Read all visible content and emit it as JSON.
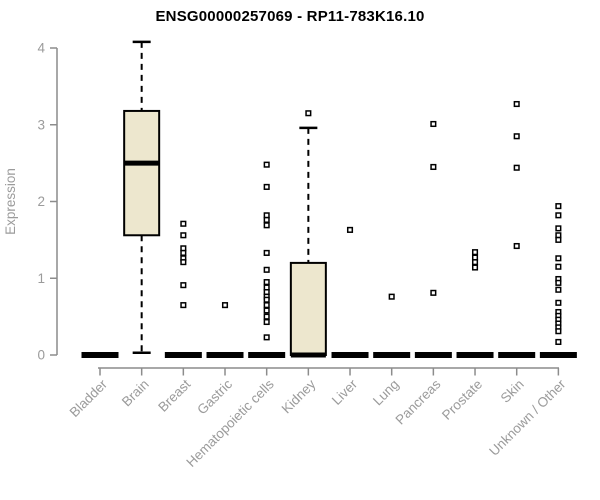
{
  "chart_data": {
    "type": "boxplot",
    "title": "ENSG00000257069 - RP11-783K16.10",
    "ylabel": "Expression",
    "xlabel": "",
    "ylim": [
      0,
      4
    ],
    "yticks": [
      0,
      1,
      2,
      3,
      4
    ],
    "grid": "off",
    "legend": "none",
    "categories": [
      "Bladder",
      "Brain",
      "Breast",
      "Gastric",
      "Hematopoietic cells",
      "Kidney",
      "Liver",
      "Lung",
      "Pancreas",
      "Prostate",
      "Skin",
      "Unknown / Other"
    ],
    "boxes": [
      {
        "category": "Bladder",
        "low": 0,
        "q1": 0,
        "median": 0,
        "q3": 0,
        "high": 0,
        "outliers": []
      },
      {
        "category": "Brain",
        "low": 0.03,
        "q1": 1.56,
        "median": 2.5,
        "q3": 3.18,
        "high": 4.08,
        "outliers": []
      },
      {
        "category": "Breast",
        "low": 0,
        "q1": 0,
        "median": 0,
        "q3": 0,
        "high": 0,
        "outliers": [
          1.71,
          1.56,
          1.39,
          1.33,
          1.26,
          1.21,
          0.91,
          0.65
        ]
      },
      {
        "category": "Gastric",
        "low": 0,
        "q1": 0,
        "median": 0,
        "q3": 0,
        "high": 0,
        "outliers": [
          0.65
        ]
      },
      {
        "category": "Hematopoietic cells",
        "low": 0,
        "q1": 0,
        "median": 0,
        "q3": 0,
        "high": 0,
        "outliers": [
          2.48,
          2.19,
          1.82,
          1.76,
          1.69,
          1.33,
          1.11,
          0.95,
          0.88,
          0.82,
          0.76,
          0.72,
          0.65,
          0.58,
          0.5,
          0.43,
          0.23
        ]
      },
      {
        "category": "Kidney",
        "low": 0,
        "q1": 0,
        "median": 0,
        "q3": 1.2,
        "high": 2.96,
        "outliers": [
          3.15
        ]
      },
      {
        "category": "Liver",
        "low": 0,
        "q1": 0,
        "median": 0,
        "q3": 0,
        "high": 0,
        "outliers": [
          1.63
        ]
      },
      {
        "category": "Lung",
        "low": 0,
        "q1": 0,
        "median": 0,
        "q3": 0,
        "high": 0,
        "outliers": [
          0.76
        ]
      },
      {
        "category": "Pancreas",
        "low": 0,
        "q1": 0,
        "median": 0,
        "q3": 0,
        "high": 0,
        "outliers": [
          3.01,
          2.45,
          0.81
        ]
      },
      {
        "category": "Prostate",
        "low": 0,
        "q1": 0,
        "median": 0,
        "q3": 0,
        "high": 0,
        "outliers": [
          1.34,
          1.27,
          1.21,
          1.14
        ]
      },
      {
        "category": "Skin",
        "low": 0,
        "q1": 0,
        "median": 0,
        "q3": 0,
        "high": 0,
        "outliers": [
          3.27,
          2.85,
          2.44,
          1.42
        ]
      },
      {
        "category": "Unknown / Other",
        "low": 0,
        "q1": 0,
        "median": 0,
        "q3": 0,
        "high": 0,
        "outliers": [
          1.94,
          1.82,
          1.65,
          1.56,
          1.5,
          1.26,
          1.15,
          0.99,
          0.94,
          0.85,
          0.68,
          0.56,
          0.51,
          0.46,
          0.41,
          0.36,
          0.31,
          0.17
        ]
      }
    ],
    "colors": {
      "box_fill": "#EDE7CE",
      "box_stroke": "#000000",
      "median": "#000000",
      "outlier": "#000000",
      "axis": "#8C8C8C",
      "tick_label": "#9B9B9B",
      "title": "#000000"
    }
  }
}
